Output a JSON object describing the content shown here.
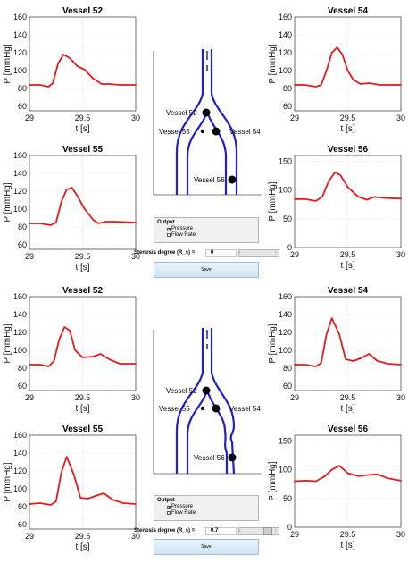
{
  "colors": {
    "curve": "#e41a1c",
    "vessel": "#1f1fcc",
    "node": "#000000"
  },
  "xlabel": "t [s]",
  "ylabel": "P [mmHg]",
  "sections": [
    {
      "plots": [
        {
          "title": "Vessel 52",
          "x_ticks": [
            "29",
            "29.5",
            "30"
          ],
          "y_ticks": [
            "60",
            "80",
            "100",
            "120",
            "140",
            "160"
          ]
        },
        {
          "title": "Vessel 54",
          "x_ticks": [
            "29",
            "29.5",
            "30"
          ],
          "y_ticks": [
            "60",
            "80",
            "100",
            "120",
            "140",
            "160"
          ]
        },
        {
          "title": "Vessel 55",
          "x_ticks": [
            "29",
            "29.5",
            "30"
          ],
          "y_ticks": [
            "60",
            "80",
            "100",
            "120",
            "140",
            "160"
          ]
        },
        {
          "title": "Vessel 56",
          "x_ticks": [
            "29",
            "29.5",
            "30"
          ],
          "y_ticks": [
            "0",
            "50",
            "100",
            "150"
          ]
        }
      ],
      "diagram": {
        "labels": [
          "Vessel 52",
          "Vessel 55",
          "Vessel 54",
          "Vessel 56"
        ]
      },
      "output": {
        "title": "Output",
        "options": [
          "Pressure",
          "Flow Rate"
        ],
        "checked": "Pressure"
      },
      "stenosis": {
        "label": "Stenosis degree (R_s) =",
        "value": "0"
      },
      "save_label": "Save"
    },
    {
      "plots": [
        {
          "title": "Vessel 52",
          "x_ticks": [
            "29",
            "29.5",
            "30"
          ],
          "y_ticks": [
            "60",
            "80",
            "100",
            "120",
            "140",
            "160"
          ]
        },
        {
          "title": "Vessel 54",
          "x_ticks": [
            "29",
            "29.5",
            "30"
          ],
          "y_ticks": [
            "60",
            "80",
            "100",
            "120",
            "140",
            "160"
          ]
        },
        {
          "title": "Vessel 55",
          "x_ticks": [
            "29",
            "29.5",
            "30"
          ],
          "y_ticks": [
            "60",
            "80",
            "100",
            "120",
            "140",
            "160"
          ]
        },
        {
          "title": "Vessel 56",
          "x_ticks": [
            "29",
            "29.5",
            "30"
          ],
          "y_ticks": [
            "0",
            "50",
            "100",
            "150"
          ]
        }
      ],
      "diagram": {
        "labels": [
          "Vessel 52",
          "Vessel 55",
          "Vessel 54",
          "Vessel 56"
        ]
      },
      "output": {
        "title": "Output",
        "options": [
          "Pressure",
          "Flow Rate"
        ],
        "checked": "Pressure"
      },
      "stenosis": {
        "label": "Stenosis degree (R_s) =",
        "value": "0.7"
      },
      "save_label": "Save"
    }
  ],
  "chart_data": [
    {
      "type": "line",
      "title": "Vessel 52",
      "xlabel": "t [s]",
      "ylabel": "P [mmHg]",
      "xlim": [
        29,
        30
      ],
      "ylim": [
        55,
        160
      ],
      "grid": true,
      "x": [
        29,
        29.1,
        29.18,
        29.22,
        29.27,
        29.32,
        29.38,
        29.45,
        29.52,
        29.6,
        29.68,
        29.75,
        29.85,
        30
      ],
      "y": [
        84,
        84,
        82,
        86,
        108,
        118,
        114,
        105,
        101,
        91,
        85,
        85,
        84,
        84
      ]
    },
    {
      "type": "line",
      "title": "Vessel 54",
      "xlabel": "t [s]",
      "ylabel": "P [mmHg]",
      "xlim": [
        29,
        30
      ],
      "ylim": [
        55,
        160
      ],
      "grid": true,
      "x": [
        29,
        29.1,
        29.2,
        29.25,
        29.3,
        29.35,
        29.4,
        29.45,
        29.5,
        29.55,
        29.62,
        29.7,
        29.8,
        30
      ],
      "y": [
        84,
        84,
        82,
        84,
        100,
        120,
        126,
        118,
        100,
        90,
        85,
        86,
        84,
        84
      ]
    },
    {
      "type": "line",
      "title": "Vessel 55",
      "xlabel": "t [s]",
      "ylabel": "P [mmHg]",
      "xlim": [
        29,
        30
      ],
      "ylim": [
        55,
        160
      ],
      "grid": true,
      "x": [
        29,
        29.1,
        29.2,
        29.25,
        29.3,
        29.35,
        29.4,
        29.45,
        29.52,
        29.6,
        29.65,
        29.72,
        29.8,
        30
      ],
      "y": [
        84,
        84,
        82,
        85,
        108,
        122,
        124,
        115,
        100,
        88,
        84,
        86,
        86,
        85
      ]
    },
    {
      "type": "line",
      "title": "Vessel 56",
      "xlabel": "t [s]",
      "ylabel": "P [mmHg]",
      "xlim": [
        29,
        30
      ],
      "ylim": [
        0,
        160
      ],
      "grid": true,
      "x": [
        29,
        29.1,
        29.2,
        29.26,
        29.32,
        29.38,
        29.43,
        29.5,
        29.6,
        29.68,
        29.75,
        29.85,
        30
      ],
      "y": [
        84,
        84,
        81,
        88,
        115,
        131,
        126,
        105,
        88,
        83,
        88,
        86,
        85
      ]
    },
    {
      "type": "line",
      "title": "Vessel 52",
      "xlabel": "t [s]",
      "ylabel": "P [mmHg]",
      "xlim": [
        29,
        30
      ],
      "ylim": [
        55,
        160
      ],
      "grid": true,
      "x": [
        29,
        29.1,
        29.18,
        29.23,
        29.28,
        29.33,
        29.38,
        29.43,
        29.5,
        29.6,
        29.67,
        29.75,
        29.85,
        30
      ],
      "y": [
        84,
        84,
        82,
        88,
        112,
        126,
        122,
        100,
        92,
        93,
        96,
        90,
        85,
        85
      ]
    },
    {
      "type": "line",
      "title": "Vessel 54",
      "xlabel": "t [s]",
      "ylabel": "P [mmHg]",
      "xlim": [
        29,
        30
      ],
      "ylim": [
        55,
        160
      ],
      "grid": true,
      "x": [
        29,
        29.1,
        29.2,
        29.25,
        29.3,
        29.35,
        29.42,
        29.48,
        29.55,
        29.62,
        29.7,
        29.78,
        29.88,
        30
      ],
      "y": [
        84,
        84,
        82,
        86,
        118,
        136,
        118,
        90,
        88,
        91,
        96,
        88,
        85,
        84
      ]
    },
    {
      "type": "line",
      "title": "Vessel 55",
      "xlabel": "t [s]",
      "ylabel": "P [mmHg]",
      "xlim": [
        29,
        30
      ],
      "ylim": [
        55,
        160
      ],
      "grid": true,
      "x": [
        29,
        29.1,
        29.2,
        29.25,
        29.3,
        29.35,
        29.42,
        29.48,
        29.55,
        29.62,
        29.7,
        29.78,
        29.88,
        30
      ],
      "y": [
        83,
        84,
        82,
        86,
        118,
        136,
        115,
        90,
        89,
        92,
        95,
        88,
        84,
        83
      ]
    },
    {
      "type": "line",
      "title": "Vessel 56",
      "xlabel": "t [s]",
      "ylabel": "P [mmHg]",
      "xlim": [
        29,
        30
      ],
      "ylim": [
        0,
        160
      ],
      "grid": true,
      "x": [
        29,
        29.1,
        29.2,
        29.28,
        29.35,
        29.42,
        29.5,
        29.6,
        29.7,
        29.78,
        29.88,
        30
      ],
      "y": [
        80,
        81,
        80,
        88,
        100,
        107,
        94,
        89,
        91,
        92,
        85,
        81
      ]
    }
  ]
}
